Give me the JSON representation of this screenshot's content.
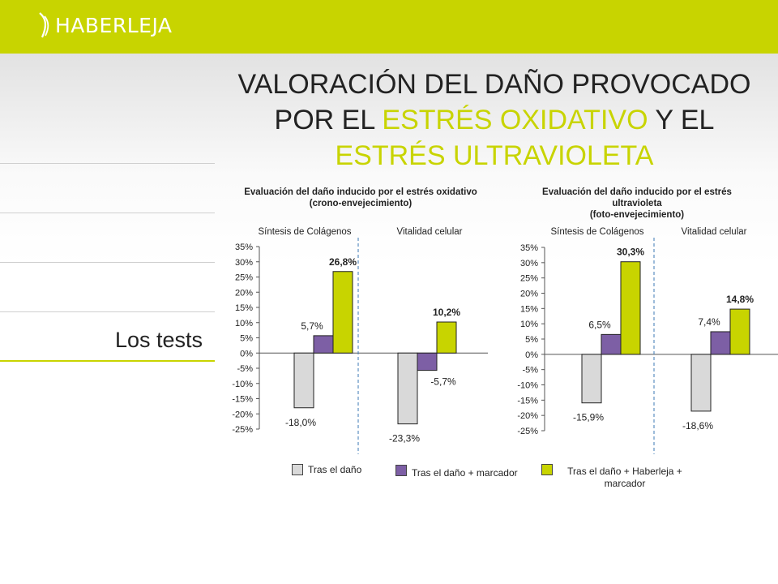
{
  "brand": {
    "name": "HABERLEJA"
  },
  "title": {
    "part1": "VALORACIÓN DEL DAÑO PROVOCADO POR EL ",
    "highlight1": "ESTRÉS OXIDATIVO",
    "part2": " Y EL ",
    "highlight2": "ESTRÉS ULTRAVIOLETA"
  },
  "sidebar": {
    "label": "Los tests"
  },
  "colors": {
    "accent": "#c8d400",
    "gray_bar": "#d9d9d9",
    "purple_bar": "#7d5fa5",
    "green_bar": "#c8d400"
  },
  "legend": [
    "Tras el daño",
    "Tras el daño + marcador",
    "Tras el daño + Haberleja + marcador"
  ],
  "chart_data": [
    {
      "type": "bar",
      "title": "Evaluación del daño inducido por el estrés oxidativo (crono-envejecimiento)",
      "title_lines": [
        "Evaluación del daño inducido por el estrés oxidativo",
        "(crono-envejecimiento)"
      ],
      "categories": [
        "Síntesis de Colágenos",
        "Vitalidad celular"
      ],
      "series": [
        {
          "name": "Tras el daño",
          "values": [
            -18.0,
            -23.3
          ],
          "labels": [
            "-18,0%",
            "-23,3%"
          ]
        },
        {
          "name": "Tras el daño + marcador",
          "values": [
            5.7,
            -5.7
          ],
          "labels": [
            "5,7%",
            "-5,7%"
          ]
        },
        {
          "name": "Tras el daño + Haberleja + marcador",
          "values": [
            26.8,
            10.2
          ],
          "labels": [
            "26,8%",
            "10,2%"
          ]
        }
      ],
      "ylim": [
        -25,
        35
      ],
      "yticks": [
        "35%",
        "30%",
        "25%",
        "20%",
        "15%",
        "10%",
        "5%",
        "0%",
        "-5%",
        "-10%",
        "-15%",
        "-20%",
        "-25%"
      ],
      "grid": false,
      "legend": "bottom"
    },
    {
      "type": "bar",
      "title": "Evaluación del daño inducido por el estrés ultravioleta (foto-envejecimiento)",
      "title_lines": [
        "Evaluación del daño inducido por el estrés",
        "ultravioleta",
        "(foto-envejecimiento)"
      ],
      "categories": [
        "Síntesis de Colágenos",
        "Vitalidad celular"
      ],
      "series": [
        {
          "name": "Tras el daño",
          "values": [
            -15.9,
            -18.6
          ],
          "labels": [
            "-15,9%",
            "-18,6%"
          ]
        },
        {
          "name": "Tras el daño + marcador",
          "values": [
            6.5,
            7.4
          ],
          "labels": [
            "6,5%",
            "7,4%"
          ]
        },
        {
          "name": "Tras el daño + Haberleja + marcador",
          "values": [
            30.3,
            14.8
          ],
          "labels": [
            "30,3%",
            "14,8%"
          ]
        }
      ],
      "ylim": [
        -25,
        35
      ],
      "yticks": [
        "35%",
        "30%",
        "25%",
        "20%",
        "15%",
        "10%",
        "5%",
        "0%",
        "-5%",
        "-10%",
        "-15%",
        "-20%",
        "-25%"
      ],
      "grid": false,
      "legend": "bottom"
    }
  ]
}
